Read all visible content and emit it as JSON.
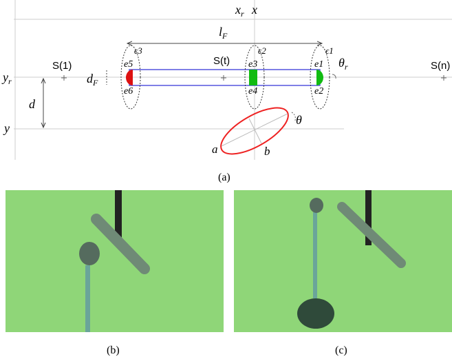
{
  "diagram": {
    "axes": {
      "xr": {
        "base": "x",
        "sub": "r"
      },
      "x": "x",
      "yr": {
        "base": "y",
        "sub": "r"
      },
      "y": "y",
      "d": "d"
    },
    "lF": {
      "base": "l",
      "sub": "F"
    },
    "dF": {
      "base": "d",
      "sub": "F"
    },
    "thetar": {
      "base": "θ",
      "sub": "r"
    },
    "theta": "θ",
    "a": "a",
    "b": "b",
    "samples": [
      "S(1)",
      "S(t)",
      "S(n)"
    ],
    "epsilons": [
      "ϵ3",
      "ϵ2",
      "ϵ1"
    ],
    "edges": [
      "e5",
      "e6",
      "e3",
      "e4",
      "e1",
      "e2"
    ]
  },
  "captions": [
    "(a)",
    "(b)",
    "(c)"
  ]
}
